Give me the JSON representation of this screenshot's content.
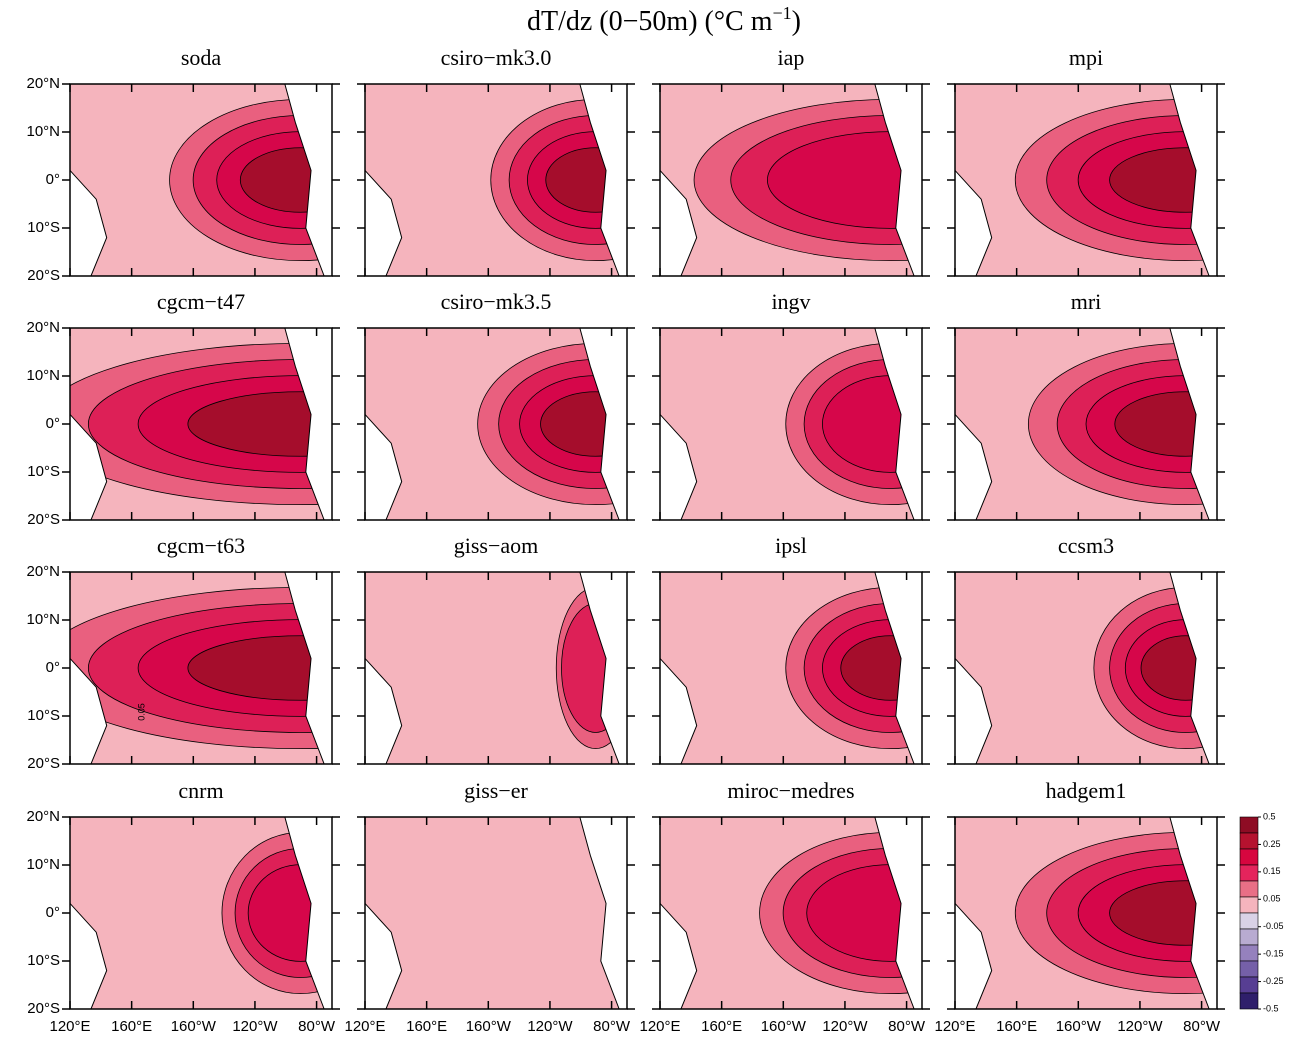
{
  "chart_data": {
    "type": "map-panels",
    "title": {
      "text": "dT/dz (0−50m) (°C m",
      "superscript": "−1",
      "close": ")"
    },
    "panels": [
      "soda",
      "csiro−mk3.0",
      "iap",
      "mpi",
      "cgcm−t47",
      "csiro−mk3.5",
      "ingv",
      "mri",
      "cgcm−t63",
      "giss−aom",
      "ipsl",
      "ccsm3",
      "cnrm",
      "giss−er",
      "miroc−medres",
      "hadgem1"
    ],
    "xlim": [
      120,
      290
    ],
    "ylim": [
      -20,
      20
    ],
    "xticks": [
      {
        "value": 120,
        "label": "120°E"
      },
      {
        "value": 160,
        "label": "160°E"
      },
      {
        "value": 200,
        "label": "160°W"
      },
      {
        "value": 240,
        "label": "120°W"
      },
      {
        "value": 280,
        "label": "80°W"
      }
    ],
    "yticks": [
      {
        "value": 20,
        "label": "20°N"
      },
      {
        "value": 10,
        "label": "10°N"
      },
      {
        "value": 0,
        "label": "0°"
      },
      {
        "value": -10,
        "label": "10°S"
      },
      {
        "value": -20,
        "label": "20°S"
      }
    ],
    "annotation": "0.05",
    "colorbar": {
      "ticks": [
        0.5,
        0.25,
        0.15,
        0.05,
        -0.05,
        -0.15,
        -0.25,
        -0.5
      ],
      "colors": [
        "#8e0c24",
        "#b5122f",
        "#d7063f",
        "#e4245c",
        "#e96f86",
        "#f5b4bd",
        "#d9d2e6",
        "#b8abd1",
        "#9581bd",
        "#7560a8",
        "#573e93",
        "#2f1f6b"
      ]
    }
  }
}
